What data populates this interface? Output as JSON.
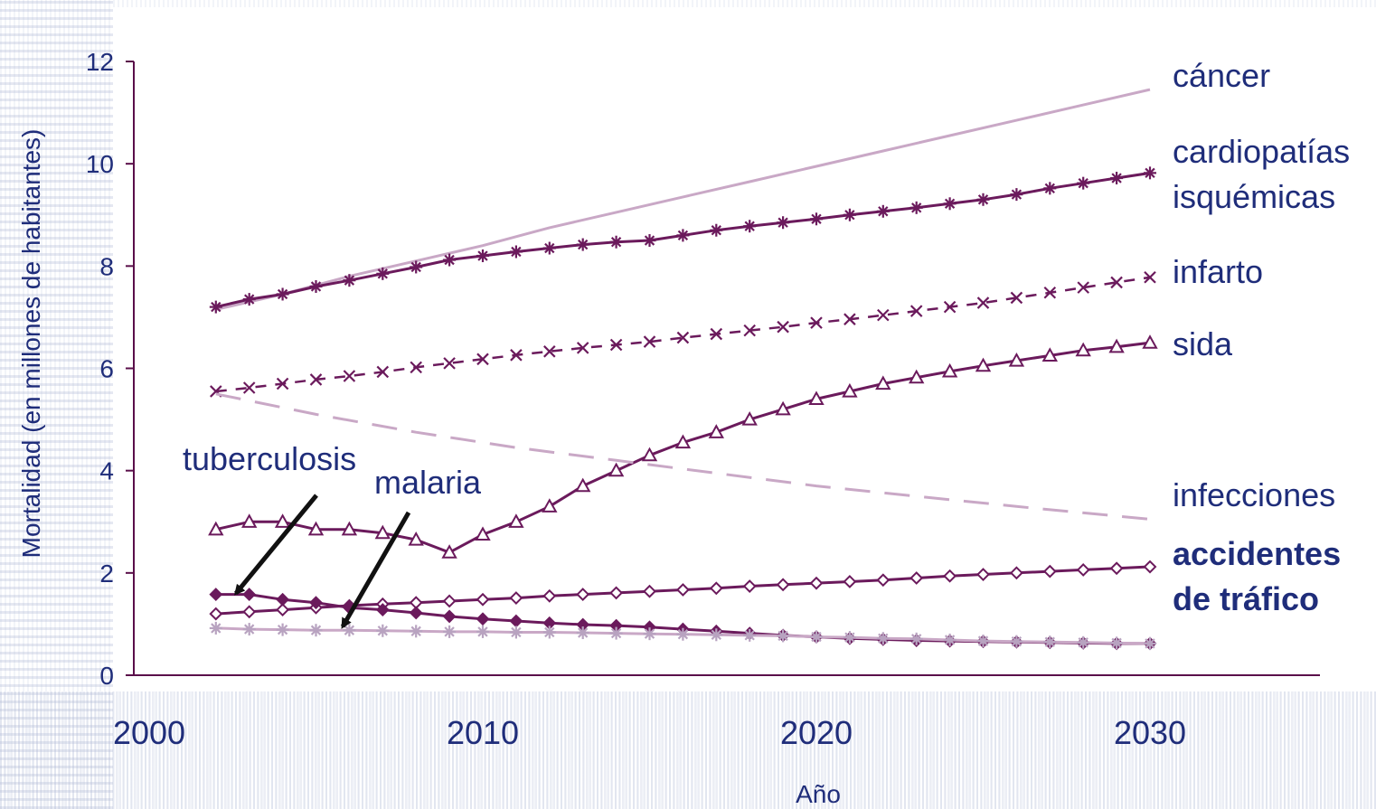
{
  "chart_data": {
    "type": "line",
    "xlabel": "Año",
    "ylabel": "Mortalidad (en millones de habitantes)",
    "xlim": [
      2000,
      2030
    ],
    "ylim": [
      0,
      12
    ],
    "xticks": [
      2000,
      2010,
      2020,
      2030
    ],
    "yticks": [
      0,
      2,
      4,
      6,
      8,
      10,
      12
    ],
    "grid": false,
    "colors": {
      "axis": "#5a0f4a",
      "text": "#1f2d7a",
      "dark": "#6b1a5c",
      "light": "#c9a8c6",
      "lightmarker": "#b8a3c0"
    },
    "series": [
      {
        "name": "cáncer",
        "label_lines": [
          "cáncer"
        ],
        "style": "solid-light",
        "marker": "none",
        "x": [
          2002,
          2004,
          2006,
          2008,
          2010,
          2012,
          2014,
          2016,
          2018,
          2020,
          2022,
          2024,
          2026,
          2028,
          2030
        ],
        "y": [
          7.15,
          7.45,
          7.8,
          8.1,
          8.4,
          8.75,
          9.05,
          9.35,
          9.65,
          9.95,
          10.25,
          10.55,
          10.85,
          11.15,
          11.45
        ]
      },
      {
        "name": "cardiopatías isquémicas",
        "label_lines": [
          "cardiopatías",
          "isquémicas"
        ],
        "style": "solid-dark",
        "marker": "asterisk",
        "x": [
          2002,
          2003,
          2004,
          2005,
          2006,
          2007,
          2008,
          2009,
          2010,
          2011,
          2012,
          2013,
          2014,
          2015,
          2016,
          2017,
          2018,
          2019,
          2020,
          2021,
          2022,
          2023,
          2024,
          2025,
          2026,
          2027,
          2028,
          2029,
          2030
        ],
        "y": [
          7.2,
          7.35,
          7.45,
          7.6,
          7.72,
          7.85,
          7.98,
          8.12,
          8.2,
          8.28,
          8.35,
          8.42,
          8.47,
          8.5,
          8.6,
          8.7,
          8.78,
          8.85,
          8.92,
          9.0,
          9.07,
          9.14,
          9.22,
          9.3,
          9.4,
          9.52,
          9.62,
          9.72,
          9.82
        ]
      },
      {
        "name": "infarto",
        "label_lines": [
          "infarto"
        ],
        "style": "dashed-dark",
        "marker": "x",
        "x": [
          2002,
          2003,
          2004,
          2005,
          2006,
          2007,
          2008,
          2009,
          2010,
          2011,
          2012,
          2013,
          2014,
          2015,
          2016,
          2017,
          2018,
          2019,
          2020,
          2021,
          2022,
          2023,
          2024,
          2025,
          2026,
          2027,
          2028,
          2029,
          2030
        ],
        "y": [
          5.55,
          5.62,
          5.7,
          5.78,
          5.85,
          5.93,
          6.02,
          6.1,
          6.18,
          6.26,
          6.33,
          6.4,
          6.46,
          6.52,
          6.6,
          6.67,
          6.74,
          6.81,
          6.89,
          6.96,
          7.04,
          7.12,
          7.2,
          7.28,
          7.38,
          7.48,
          7.58,
          7.68,
          7.78
        ]
      },
      {
        "name": "sida",
        "label_lines": [
          "sida"
        ],
        "style": "solid-dark",
        "marker": "triangle",
        "x": [
          2002,
          2003,
          2004,
          2005,
          2006,
          2007,
          2008,
          2009,
          2010,
          2011,
          2012,
          2013,
          2014,
          2015,
          2016,
          2017,
          2018,
          2019,
          2020,
          2021,
          2022,
          2023,
          2024,
          2025,
          2026,
          2027,
          2028,
          2029,
          2030
        ],
        "y": [
          2.85,
          3.0,
          3.0,
          2.85,
          2.85,
          2.78,
          2.65,
          2.4,
          2.75,
          3.0,
          3.3,
          3.7,
          4.0,
          4.3,
          4.55,
          4.75,
          5.0,
          5.2,
          5.4,
          5.55,
          5.7,
          5.82,
          5.94,
          6.05,
          6.15,
          6.25,
          6.35,
          6.42,
          6.5
        ]
      },
      {
        "name": "infecciones",
        "label_lines": [
          "infecciones"
        ],
        "style": "dashed-light",
        "marker": "none",
        "x": [
          2002,
          2005,
          2008,
          2011,
          2014,
          2017,
          2020,
          2023,
          2026,
          2030
        ],
        "y": [
          5.5,
          5.1,
          4.75,
          4.45,
          4.2,
          3.95,
          3.7,
          3.5,
          3.3,
          3.05
        ]
      },
      {
        "name": "accidentes de tráfico",
        "label_lines": [
          "accidentes",
          "de tráfico"
        ],
        "style": "solid-dark",
        "marker": "diamond",
        "bold_label": true,
        "x": [
          2002,
          2003,
          2004,
          2005,
          2006,
          2007,
          2008,
          2009,
          2010,
          2011,
          2012,
          2013,
          2014,
          2015,
          2016,
          2017,
          2018,
          2019,
          2020,
          2021,
          2022,
          2023,
          2024,
          2025,
          2026,
          2027,
          2028,
          2029,
          2030
        ],
        "y": [
          1.2,
          1.24,
          1.28,
          1.32,
          1.36,
          1.39,
          1.42,
          1.45,
          1.48,
          1.51,
          1.55,
          1.58,
          1.61,
          1.64,
          1.67,
          1.7,
          1.74,
          1.77,
          1.8,
          1.83,
          1.86,
          1.9,
          1.94,
          1.97,
          2.0,
          2.03,
          2.06,
          2.09,
          2.12
        ]
      },
      {
        "name": "tuberculosis",
        "style": "solid-dark",
        "marker": "diamond-filled",
        "x": [
          2002,
          2003,
          2004,
          2005,
          2006,
          2007,
          2008,
          2009,
          2010,
          2011,
          2012,
          2013,
          2014,
          2015,
          2016,
          2017,
          2018,
          2019,
          2020,
          2021,
          2022,
          2023,
          2024,
          2025,
          2026,
          2027,
          2028,
          2029,
          2030
        ],
        "y": [
          1.58,
          1.58,
          1.48,
          1.42,
          1.32,
          1.28,
          1.22,
          1.15,
          1.1,
          1.06,
          1.02,
          0.99,
          0.97,
          0.94,
          0.9,
          0.86,
          0.82,
          0.78,
          0.75,
          0.72,
          0.7,
          0.68,
          0.67,
          0.66,
          0.65,
          0.64,
          0.63,
          0.62,
          0.62
        ]
      },
      {
        "name": "malaria",
        "style": "solid-light",
        "marker": "asterisk-light",
        "x": [
          2002,
          2003,
          2004,
          2005,
          2006,
          2007,
          2008,
          2009,
          2010,
          2011,
          2012,
          2013,
          2014,
          2015,
          2016,
          2017,
          2018,
          2019,
          2020,
          2021,
          2022,
          2023,
          2024,
          2025,
          2026,
          2027,
          2028,
          2029,
          2030
        ],
        "y": [
          0.92,
          0.9,
          0.89,
          0.88,
          0.88,
          0.87,
          0.86,
          0.85,
          0.85,
          0.84,
          0.84,
          0.83,
          0.82,
          0.81,
          0.8,
          0.79,
          0.78,
          0.77,
          0.75,
          0.74,
          0.72,
          0.71,
          0.69,
          0.67,
          0.66,
          0.65,
          0.64,
          0.63,
          0.62
        ]
      }
    ],
    "annotations": [
      {
        "text": "tuberculosis",
        "points_to": "tuberculosis",
        "target": [
          2002.6,
          1.6
        ]
      },
      {
        "text": "malaria",
        "points_to": "malaria",
        "target": [
          2005.8,
          0.95
        ]
      }
    ]
  }
}
